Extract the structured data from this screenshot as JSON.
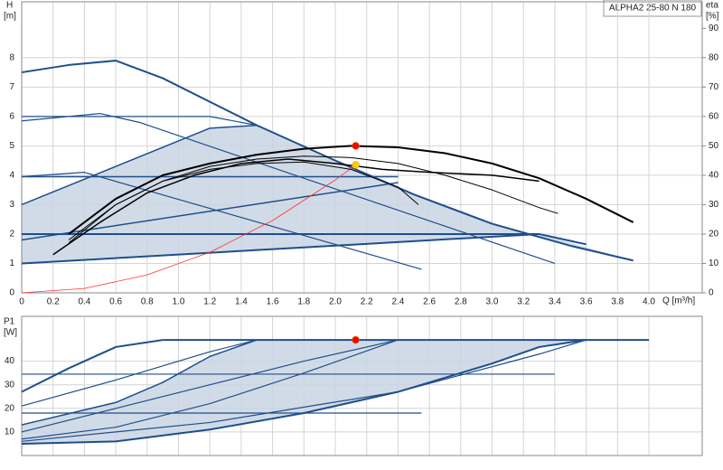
{
  "chart_data": [
    {
      "type": "line",
      "title": "ALPHA2 25-80 N 180",
      "ylabel": "H",
      "yunit": "[m]",
      "y2label": "eta",
      "y2unit": "[%]",
      "xlabel": "Q [m³/h]",
      "xlim": [
        0,
        4.34
      ],
      "ylim": [
        0,
        9.9
      ],
      "y2lim": [
        0,
        99
      ],
      "grid": true,
      "xticks": [
        0,
        0.2,
        0.4,
        0.6,
        0.8,
        {
          "value": 1,
          "label": "1.0"
        },
        1.2,
        1.4,
        1.6,
        1.8,
        {
          "value": 2,
          "label": "2.0"
        },
        2.2,
        2.4,
        2.6,
        2.8,
        {
          "value": 3,
          "label": "3.0"
        },
        3.2,
        3.4,
        3.6,
        3.8,
        {
          "value": 4,
          "label": "4.0"
        }
      ],
      "yticks": [
        0,
        1,
        2,
        3,
        4,
        5,
        6,
        7,
        8
      ],
      "y2ticks": [
        0,
        10,
        20,
        30,
        40,
        50,
        60,
        70,
        80,
        90
      ],
      "areas": [
        {
          "color": "#c9d5e3",
          "x": [
            0,
            1.2,
            1.5,
            2.0,
            2.5,
            3.0,
            3.5,
            3.9,
            3.3,
            0
          ],
          "values": [
            3.0,
            5.6,
            5.7,
            4.5,
            3.35,
            2.35,
            1.6,
            1.1,
            2.0,
            1.0
          ]
        }
      ],
      "series": [
        {
          "color": "#1f4e8c",
          "width": 2,
          "x": [
            0,
            0.3,
            0.6,
            0.9,
            1.2,
            1.5,
            2.0,
            2.5,
            3.0,
            3.5,
            3.9
          ],
          "values": [
            7.5,
            7.75,
            7.9,
            7.3,
            6.5,
            5.7,
            4.5,
            3.35,
            2.35,
            1.6,
            1.1
          ]
        },
        {
          "color": "#1f4e8c",
          "width": 1.2,
          "x": [
            0,
            0.5,
            0.75,
            3.4
          ],
          "values": [
            5.85,
            6.1,
            5.8,
            1.0
          ]
        },
        {
          "color": "#1f4e8c",
          "width": 1.2,
          "x": [
            0,
            0.4,
            2.55
          ],
          "values": [
            3.95,
            4.1,
            0.8
          ]
        },
        {
          "color": "#1f4e8c",
          "width": 1.2,
          "x": [
            0,
            1.2,
            1.5
          ],
          "values": [
            6.0,
            6.0,
            5.7
          ]
        },
        {
          "color": "#1f4e8c",
          "width": 1.5,
          "x": [
            0,
            2.4
          ],
          "values": [
            3.95,
            3.95
          ]
        },
        {
          "color": "#1f4e8c",
          "width": 2,
          "x": [
            0,
            3.3,
            3.6
          ],
          "values": [
            2.0,
            2.0,
            1.65
          ]
        },
        {
          "color": "#1f4e8c",
          "width": 1.5,
          "x": [
            0,
            1.2,
            1.5
          ],
          "values": [
            3.0,
            5.6,
            5.7
          ]
        },
        {
          "color": "#1f4e8c",
          "width": 1.5,
          "x": [
            0,
            2.4
          ],
          "values": [
            1.8,
            3.75
          ]
        },
        {
          "color": "#1f4e8c",
          "width": 2,
          "x": [
            0,
            3.3
          ],
          "values": [
            1.0,
            2.0
          ]
        },
        {
          "color": "#ff3333",
          "width": 0.8,
          "x": [
            0,
            0.4,
            0.8,
            1.2,
            1.6,
            2.0,
            2.13
          ],
          "values": [
            0,
            0.15,
            0.61,
            1.38,
            2.46,
            3.84,
            4.35
          ]
        },
        {
          "color": "#000000",
          "width": 2,
          "axis": "y2",
          "x": [
            0.3,
            0.6,
            0.9,
            1.2,
            1.5,
            1.8,
            2.1,
            2.4,
            2.7,
            3.0,
            3.3,
            3.6,
            3.9
          ],
          "values": [
            20,
            32,
            40,
            44,
            47,
            49,
            50,
            49.5,
            47.5,
            44,
            39,
            32,
            24
          ]
        },
        {
          "color": "#000000",
          "width": 1,
          "axis": "y2",
          "x": [
            0.3,
            0.6,
            0.9,
            1.2,
            1.5,
            1.8,
            2.1,
            2.4,
            2.7,
            3.0,
            3.3,
            3.42
          ],
          "values": [
            18,
            30,
            38,
            43,
            45.5,
            46.5,
            46,
            44,
            40,
            35,
            29,
            27
          ]
        },
        {
          "color": "#000000",
          "width": 1,
          "axis": "y2",
          "x": [
            0.3,
            0.6,
            0.9,
            1.2,
            1.5,
            1.8,
            2.1,
            2.4,
            2.53
          ],
          "values": [
            17,
            30,
            38,
            42,
            44,
            44.5,
            42,
            36,
            30
          ]
        },
        {
          "color": "#000000",
          "width": 1.5,
          "axis": "y2",
          "x": [
            0.2,
            0.5,
            0.8,
            1.1,
            1.4,
            1.7,
            2.0,
            2.3,
            2.6,
            3.0,
            3.3
          ],
          "values": [
            13,
            24,
            34,
            40,
            44,
            45.5,
            44,
            42,
            41,
            40,
            38
          ]
        }
      ],
      "points": [
        {
          "color": "#ff0000",
          "axis": "y2",
          "x": 2.13,
          "value": 50
        },
        {
          "color": "#ffcc00",
          "x": 2.13,
          "value": 4.35
        }
      ]
    },
    {
      "type": "line",
      "ylabel": "P1",
      "yunit": "[W]",
      "xlim": [
        0,
        4.34
      ],
      "ylim": [
        0,
        59
      ],
      "grid": true,
      "yticks": [
        10,
        20,
        30,
        40
      ],
      "areas": [
        {
          "color": "#c9d5e3",
          "x": [
            0,
            0.6,
            0.9,
            1.2,
            1.5,
            3.6,
            3.3,
            3.0,
            2.4,
            1.8,
            1.2,
            0.6,
            0
          ],
          "values": [
            13,
            22.5,
            31,
            42,
            49,
            49,
            46,
            39,
            27,
            18,
            11,
            6,
            5
          ]
        }
      ],
      "series": [
        {
          "color": "#1f4e8c",
          "width": 2,
          "x": [
            0.9,
            4.0
          ],
          "values": [
            49,
            49
          ]
        },
        {
          "color": "#1f4e8c",
          "width": 2,
          "x": [
            0,
            0.3,
            0.6,
            0.9
          ],
          "values": [
            27,
            37,
            46,
            49
          ]
        },
        {
          "color": "#1f4e8c",
          "width": 1.2,
          "x": [
            0,
            0.6,
            1.2,
            1.5
          ],
          "values": [
            21,
            32,
            44,
            49
          ]
        },
        {
          "color": "#1f4e8c",
          "width": 1.5,
          "x": [
            0,
            0.6,
            0.9,
            1.2,
            1.5
          ],
          "values": [
            13,
            22.5,
            31,
            42,
            49
          ]
        },
        {
          "color": "#1f4e8c",
          "width": 1.2,
          "x": [
            0,
            0.6,
            1.2,
            1.8,
            2.4
          ],
          "values": [
            10,
            20,
            30,
            40,
            49
          ]
        },
        {
          "color": "#1f4e8c",
          "width": 1.2,
          "x": [
            0,
            0.6,
            1.2,
            1.8,
            2.4
          ],
          "values": [
            7,
            12,
            22,
            35,
            49
          ]
        },
        {
          "color": "#1f4e8c",
          "width": 1.2,
          "x": [
            0,
            1.2,
            2.4,
            3.3,
            3.6
          ],
          "values": [
            6,
            14,
            27,
            43,
            49
          ]
        },
        {
          "color": "#1f4e8c",
          "width": 2,
          "x": [
            0,
            0.6,
            1.2,
            1.8,
            2.4,
            3.0,
            3.3,
            3.6
          ],
          "values": [
            5,
            6,
            11,
            18,
            27,
            39,
            46,
            49
          ]
        },
        {
          "color": "#1f4e8c",
          "width": 1.2,
          "x": [
            0,
            3.4
          ],
          "values": [
            34.5,
            34.5
          ]
        },
        {
          "color": "#1f4e8c",
          "width": 1.2,
          "x": [
            0,
            2.55
          ],
          "values": [
            18,
            18
          ]
        }
      ],
      "points": [
        {
          "color": "#ff0000",
          "x": 2.13,
          "value": 49
        }
      ]
    }
  ]
}
